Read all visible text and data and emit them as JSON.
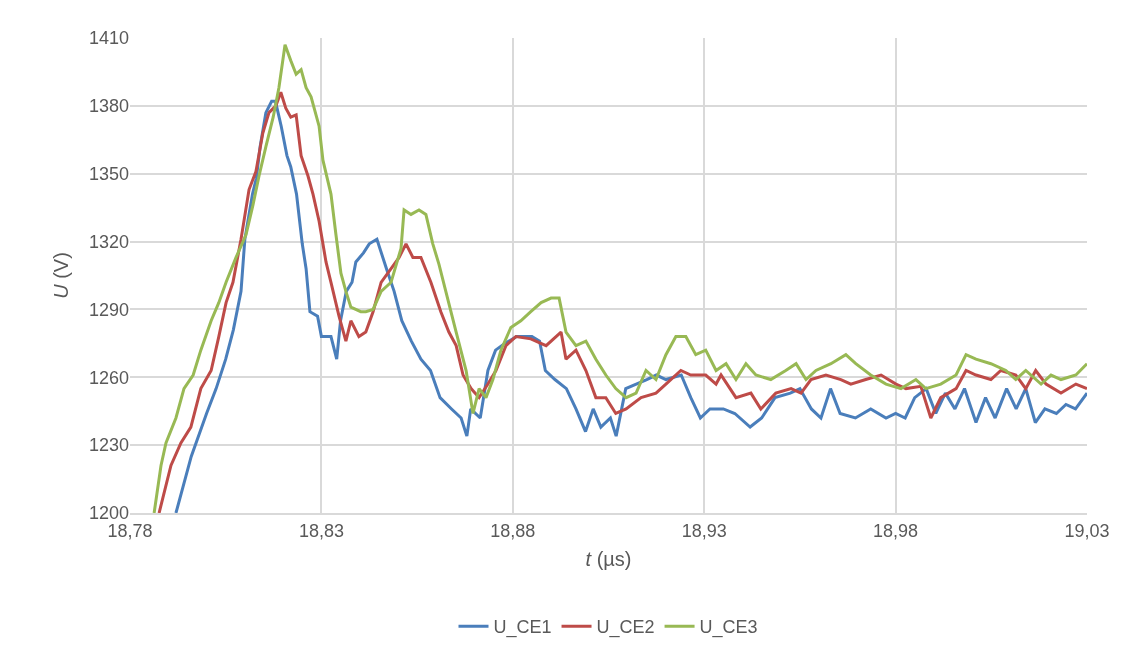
{
  "chart_data": {
    "type": "line",
    "xlabel": "t (µs)",
    "ylabel": "U (V)",
    "xlim": [
      18.78,
      19.03
    ],
    "xticks": [
      {
        "value": 18.78,
        "label": "18,78"
      },
      {
        "value": 18.83,
        "label": "18,83"
      },
      {
        "value": 18.88,
        "label": "18,88"
      },
      {
        "value": 18.93,
        "label": "18,93"
      },
      {
        "value": 18.98,
        "label": "18,98"
      },
      {
        "value": 19.03,
        "label": "19,03"
      }
    ],
    "ylim": [
      1200,
      1410
    ],
    "yticks": [
      1200,
      1230,
      1260,
      1290,
      1320,
      1350,
      1380,
      1410
    ],
    "grid": true,
    "legend": "bottom",
    "marker": "none",
    "line_style": "solid",
    "series": [
      {
        "name": "U_CE1",
        "color": "#4a7ebb",
        "x": [
          18.792,
          18.796,
          18.8,
          18.8025,
          18.805,
          18.807,
          18.809,
          18.81,
          18.812,
          18.813,
          18.814,
          18.8155,
          18.817,
          18.818,
          18.8195,
          18.821,
          18.822,
          18.8235,
          18.825,
          18.826,
          18.827,
          18.829,
          18.83,
          18.8325,
          18.834,
          18.835,
          18.8365,
          18.838,
          18.839,
          18.841,
          18.8425,
          18.8445,
          18.847,
          18.849,
          18.851,
          18.8535,
          18.856,
          18.8585,
          18.861,
          18.864,
          18.8665,
          18.868,
          18.869,
          18.8715,
          18.8735,
          18.8755,
          18.878,
          18.881,
          18.885,
          18.887,
          18.8885,
          18.891,
          18.894,
          18.8965,
          18.899,
          18.901,
          18.903,
          18.9055,
          18.907,
          18.9095,
          18.915,
          18.9175,
          18.92,
          18.924,
          18.9265,
          18.929,
          18.9315,
          18.935,
          18.938,
          18.942,
          18.945,
          18.9485,
          18.9525,
          18.955,
          18.958,
          18.9605,
          18.963,
          18.9655,
          18.9695,
          18.9735,
          18.9775,
          18.98,
          18.9825,
          18.985,
          18.988,
          18.9905,
          18.993,
          18.9955,
          18.998,
          19.001,
          19.0035,
          19.006,
          19.009,
          19.0115,
          19.014,
          19.0165,
          19.019,
          19.022,
          19.0245,
          19.027,
          19.03
        ],
        "values": [
          1200,
          1225,
          1244,
          1255,
          1268,
          1281,
          1298,
          1321,
          1341,
          1348,
          1362,
          1377,
          1382,
          1382,
          1371,
          1358,
          1353,
          1341,
          1319,
          1308,
          1289,
          1287,
          1278,
          1278,
          1268,
          1285,
          1298,
          1302,
          1311,
          1315,
          1319,
          1321,
          1308,
          1298,
          1285,
          1276,
          1268,
          1263,
          1251,
          1246,
          1242,
          1234,
          1246,
          1242,
          1263,
          1272,
          1275,
          1278,
          1278,
          1276,
          1263,
          1259,
          1255,
          1246,
          1236,
          1246,
          1238,
          1242,
          1234,
          1255,
          1259,
          1261,
          1259,
          1261,
          1251,
          1242,
          1246,
          1246,
          1244,
          1238,
          1242,
          1251,
          1253,
          1255,
          1246,
          1242,
          1255,
          1244,
          1242,
          1246,
          1242,
          1244,
          1242,
          1251,
          1255,
          1244,
          1253,
          1246,
          1255,
          1240,
          1251,
          1242,
          1255,
          1246,
          1255,
          1240,
          1246,
          1244,
          1248,
          1246,
          1253
        ]
      },
      {
        "name": "U_CE2",
        "color": "#be4b48",
        "x": [
          18.7876,
          18.7907,
          18.7933,
          18.7959,
          18.7985,
          18.8012,
          18.8032,
          18.8051,
          18.8069,
          18.809,
          18.8111,
          18.8129,
          18.8147,
          18.8163,
          18.8181,
          18.8194,
          18.8207,
          18.822,
          18.8234,
          18.8247,
          18.8265,
          18.8278,
          18.8294,
          18.8312,
          18.8325,
          18.8346,
          18.8364,
          18.8377,
          18.8398,
          18.8416,
          18.8435,
          18.8456,
          18.8482,
          18.8503,
          18.8521,
          18.8539,
          18.856,
          18.8586,
          18.8612,
          18.8633,
          18.8652,
          18.867,
          18.8691,
          18.8712,
          18.8735,
          18.8756,
          18.8782,
          18.8808,
          18.8847,
          18.8887,
          18.8926,
          18.8939,
          18.8965,
          18.8991,
          18.9017,
          18.9043,
          18.9069,
          18.9096,
          18.9135,
          18.9174,
          18.92,
          18.9239,
          18.9265,
          18.9304,
          18.9331,
          18.9344,
          18.9383,
          18.9422,
          18.9448,
          18.9487,
          18.9527,
          18.9553,
          18.9579,
          18.9618,
          18.9657,
          18.9683,
          18.9722,
          18.9762,
          18.9801,
          18.9827,
          18.9866,
          18.9892,
          18.9918,
          18.9958,
          18.9984,
          19.001,
          19.0049,
          19.0075,
          19.0114,
          19.014,
          19.0166,
          19.0193,
          19.0232,
          19.0271,
          19.03
        ],
        "values": [
          1200,
          1221,
          1231,
          1238,
          1255,
          1263,
          1278,
          1293,
          1302,
          1321,
          1343,
          1351,
          1368,
          1377,
          1380,
          1386,
          1379,
          1375,
          1376,
          1358,
          1349,
          1341,
          1329,
          1311,
          1302,
          1287,
          1276,
          1285,
          1278,
          1280,
          1289,
          1302,
          1308,
          1313,
          1319,
          1313,
          1313,
          1302,
          1289,
          1280,
          1274,
          1261,
          1255,
          1251,
          1257,
          1263,
          1274,
          1278,
          1277,
          1274,
          1280,
          1268,
          1272,
          1263,
          1251,
          1251,
          1244,
          1246,
          1251,
          1253,
          1257,
          1263,
          1261,
          1261,
          1257,
          1261,
          1251,
          1253,
          1246,
          1253,
          1255,
          1253,
          1259,
          1261,
          1259,
          1257,
          1259,
          1261,
          1257,
          1255,
          1256,
          1242,
          1251,
          1255,
          1263,
          1261,
          1259,
          1263,
          1261,
          1255,
          1263,
          1257,
          1253,
          1257,
          1255
        ]
      },
      {
        "name": "U_CE3",
        "color": "#98b954",
        "x": [
          18.7863,
          18.7881,
          18.7894,
          18.792,
          18.7941,
          18.7965,
          18.7985,
          18.8012,
          18.8032,
          18.8051,
          18.8077,
          18.8103,
          18.8121,
          18.8137,
          18.8155,
          18.8174,
          18.8189,
          18.8205,
          18.822,
          18.8234,
          18.8247,
          18.826,
          18.8273,
          18.8294,
          18.8304,
          18.8325,
          18.8338,
          18.8351,
          18.8364,
          18.8377,
          18.8403,
          18.8416,
          18.8435,
          18.8456,
          18.8482,
          18.8508,
          18.8516,
          18.8534,
          18.8555,
          18.8573,
          18.8591,
          18.8607,
          18.8625,
          18.8652,
          18.8678,
          18.8696,
          18.8712,
          18.873,
          18.8748,
          18.8769,
          18.8795,
          18.8821,
          18.8847,
          18.8874,
          18.89,
          18.8921,
          18.8939,
          18.8965,
          18.8991,
          18.9017,
          18.9043,
          18.9069,
          18.9096,
          18.9122,
          18.9148,
          18.9174,
          18.92,
          18.9226,
          18.9252,
          18.9278,
          18.9304,
          18.9331,
          18.9357,
          18.9383,
          18.9409,
          18.9435,
          18.9474,
          18.9513,
          18.954,
          18.9566,
          18.9592,
          18.9631,
          18.967,
          18.9696,
          18.9735,
          18.9775,
          18.9814,
          18.9853,
          18.9879,
          18.9918,
          18.9958,
          18.9984,
          19.001,
          19.0049,
          19.0088,
          19.0114,
          19.014,
          19.018,
          19.0206,
          19.0232,
          19.0271,
          19.03
        ],
        "values": [
          1200,
          1221,
          1231,
          1242,
          1255,
          1261,
          1272,
          1285,
          1293,
          1302,
          1313,
          1323,
          1336,
          1349,
          1362,
          1375,
          1388,
          1407,
          1400,
          1394,
          1396,
          1388,
          1384,
          1371,
          1356,
          1341,
          1323,
          1306,
          1298,
          1291,
          1289,
          1289,
          1290,
          1298,
          1302,
          1317,
          1334,
          1332,
          1334,
          1332,
          1319,
          1310,
          1298,
          1280,
          1263,
          1244,
          1255,
          1251,
          1259,
          1272,
          1282,
          1285,
          1289,
          1293,
          1295,
          1295,
          1280,
          1274,
          1276,
          1268,
          1261,
          1255,
          1251,
          1253,
          1263,
          1259,
          1270,
          1278,
          1278,
          1270,
          1272,
          1263,
          1266,
          1259,
          1266,
          1261,
          1259,
          1263,
          1266,
          1259,
          1263,
          1266,
          1270,
          1266,
          1261,
          1257,
          1255,
          1259,
          1255,
          1257,
          1261,
          1270,
          1268,
          1266,
          1263,
          1259,
          1263,
          1257,
          1261,
          1259,
          1261,
          1266
        ]
      }
    ]
  }
}
